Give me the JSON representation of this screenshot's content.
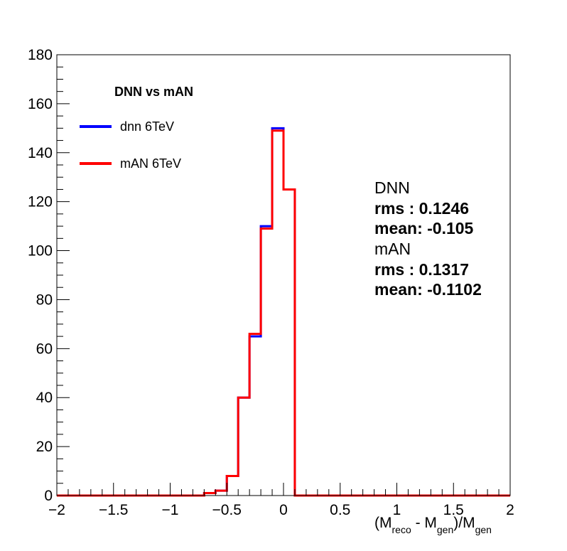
{
  "chart_data": {
    "type": "histogram",
    "title": "",
    "xlabel": {
      "lead": "(M",
      "sub1": "reco",
      "mid": " - M",
      "sub2": "gen",
      "close": ")/M",
      "sub3": "gen"
    },
    "ylabel": "",
    "xlim": [
      -2,
      2
    ],
    "ylim": [
      0,
      180
    ],
    "x_ticks": [
      -2,
      -1.5,
      -1,
      -0.5,
      0,
      0.5,
      1,
      1.5,
      2
    ],
    "x_tick_labels": [
      "−2",
      "−1.5",
      "−1",
      "−0.5",
      "0",
      "0.5",
      "1",
      "1.5",
      "2"
    ],
    "y_ticks": [
      0,
      20,
      40,
      60,
      80,
      100,
      120,
      140,
      160,
      180
    ],
    "y_tick_labels": [
      "0",
      "20",
      "40",
      "60",
      "80",
      "100",
      "120",
      "140",
      "160",
      "180"
    ],
    "bin_width": 0.1,
    "grid": false,
    "legend": {
      "title": "DNN vs mAN",
      "position": "top-left",
      "entries": [
        "dnn 6TeV",
        "mAN 6TeV"
      ]
    },
    "series": [
      {
        "name": "dnn 6TeV",
        "color": "#0000ff",
        "bins": [
          [
            -0.7,
            1
          ],
          [
            -0.6,
            2
          ],
          [
            -0.5,
            8
          ],
          [
            -0.4,
            40
          ],
          [
            -0.3,
            65
          ],
          [
            -0.2,
            110
          ],
          [
            -0.1,
            150
          ],
          [
            0.0,
            125
          ]
        ]
      },
      {
        "name": "mAN 6TeV",
        "color": "#ff0000",
        "bins": [
          [
            -0.7,
            1
          ],
          [
            -0.6,
            2
          ],
          [
            -0.5,
            8
          ],
          [
            -0.4,
            40
          ],
          [
            -0.3,
            66
          ],
          [
            -0.2,
            109
          ],
          [
            -0.1,
            149
          ],
          [
            0.0,
            125
          ]
        ]
      }
    ],
    "annotations": [
      {
        "label": "DNN",
        "rms": "rms : 0.1246",
        "mean": "mean: -0.105"
      },
      {
        "label": "mAN",
        "rms": "rms : 0.1317",
        "mean": "mean: -0.1102"
      }
    ]
  }
}
